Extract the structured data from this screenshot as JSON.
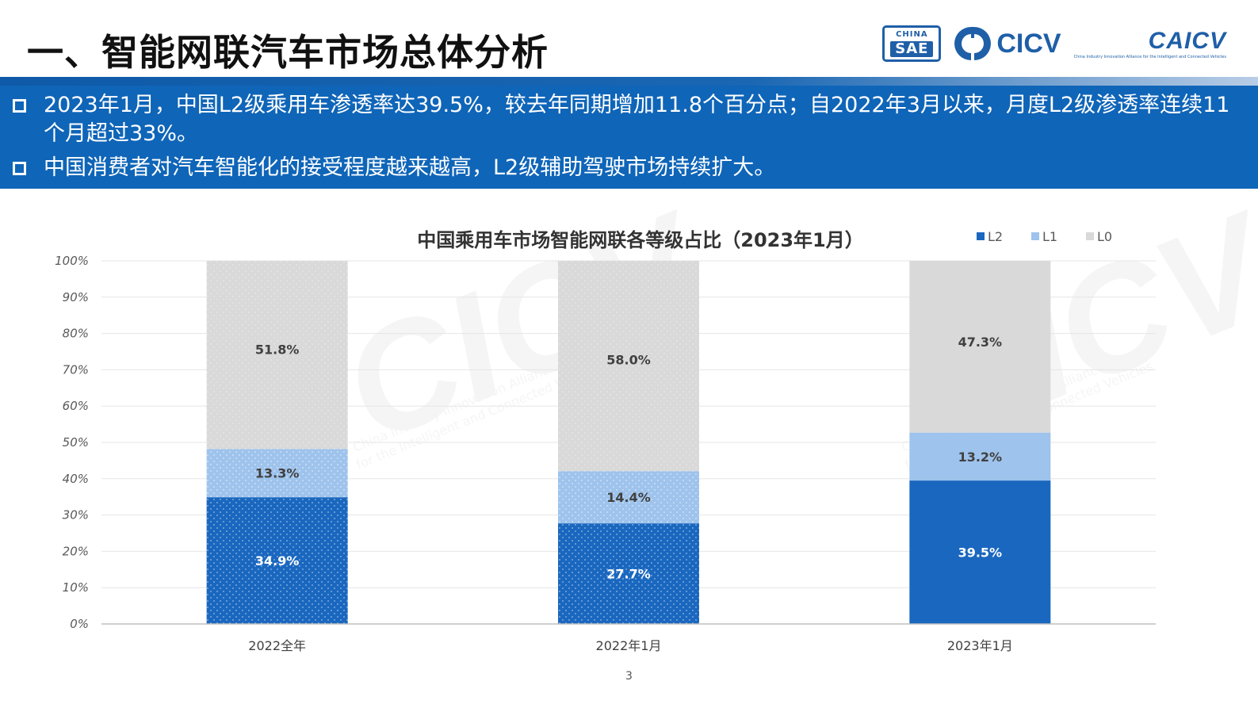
{
  "page": {
    "title": "一、智能网联汽车市场总体分析",
    "page_number": "3"
  },
  "logos": {
    "sae_top": "CHINA",
    "sae_bottom": "SAE",
    "cicv": "CICV",
    "caicv": "CAICV",
    "caicv_sub": "China Industry Innovation Alliance for the Intelligent and Connected Vehicles"
  },
  "bullets": [
    "2023年1月，中国L2级乘用车渗透率达39.5%，较去年同期增加11.8个百分点；自2022年3月以来，月度L2级渗透率连续11个月超过33%。",
    "中国消费者对汽车智能化的接受程度越来越高，L2级辅助驾驶市场持续扩大。"
  ],
  "watermark": {
    "logo": "CICV",
    "line1": "China Industry Innovation Alliance",
    "line2": "for the Intelligent and Connected Vehicles"
  },
  "chart_data": {
    "type": "bar",
    "stacked": true,
    "title": "中国乘用车市场智能网联各等级占比（2023年1月）",
    "categories": [
      "2022全年",
      "2022年1月",
      "2023年1月"
    ],
    "series": [
      {
        "name": "L2",
        "values": [
          34.9,
          27.7,
          39.5
        ],
        "labels": [
          "34.9%",
          "27.7%",
          "39.5%"
        ],
        "color": "#1a67bf"
      },
      {
        "name": "L1",
        "values": [
          13.3,
          14.4,
          13.2
        ],
        "labels": [
          "13.3%",
          "14.4%",
          "13.2%"
        ],
        "color": "#9ec3ec"
      },
      {
        "name": "L0",
        "values": [
          51.8,
          58.0,
          47.3
        ],
        "labels": [
          "51.8%",
          "58.0%",
          "47.3%"
        ],
        "color": "#d9d9d9"
      }
    ],
    "ylim": [
      0,
      100
    ],
    "y_ticks": [
      "0%",
      "10%",
      "20%",
      "30%",
      "40%",
      "50%",
      "60%",
      "70%",
      "80%",
      "90%",
      "100%"
    ],
    "grid": true,
    "legend_position": "top-right",
    "dotted_pattern_categories": [
      "2022全年",
      "2022年1月"
    ]
  }
}
